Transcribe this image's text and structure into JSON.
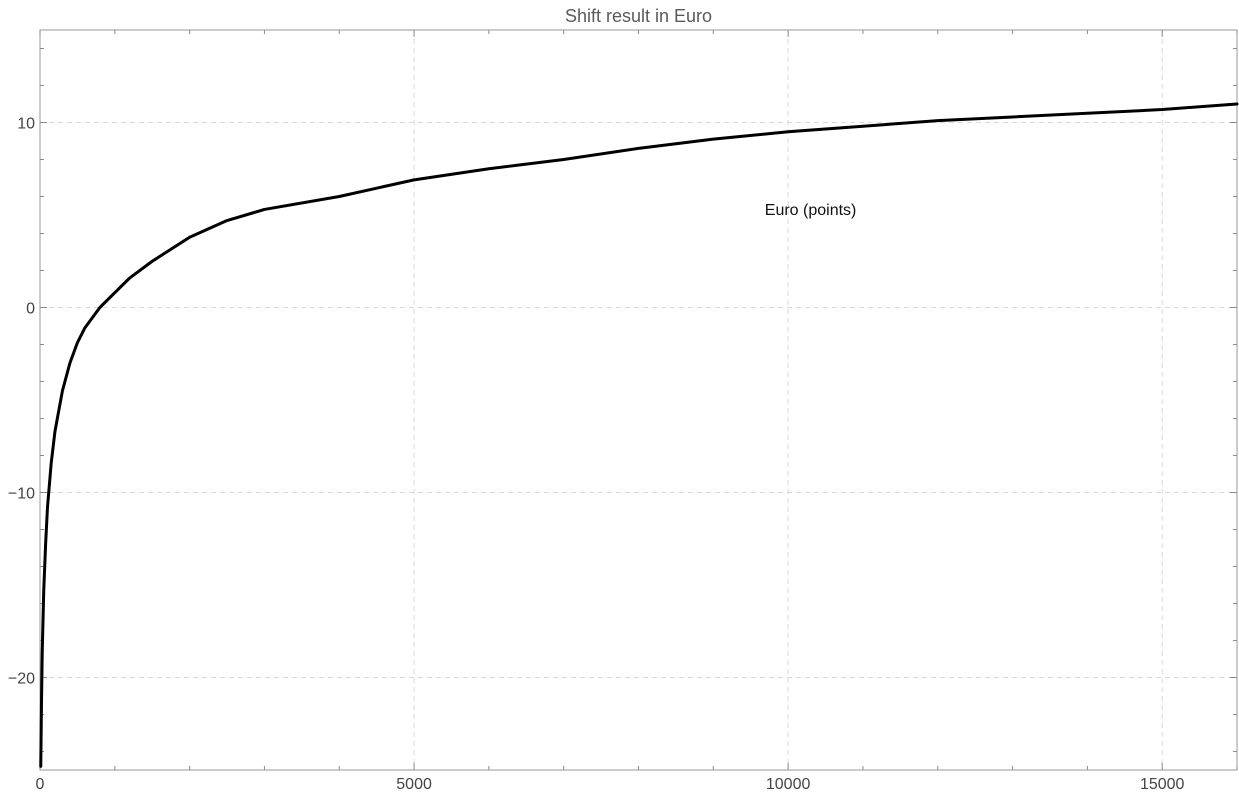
{
  "chart_data": {
    "type": "line",
    "title": "Shift result in Euro",
    "xlabel": "",
    "ylabel": "",
    "xlim": [
      0,
      16000
    ],
    "ylim": [
      -25,
      15
    ],
    "grid": true,
    "legend": "none",
    "x_ticks": [
      0,
      5000,
      10000,
      15000
    ],
    "x_tick_labels": [
      "0",
      "5000",
      "10000",
      "15000"
    ],
    "y_ticks": [
      -20,
      -10,
      0,
      10
    ],
    "y_tick_labels": [
      "−20",
      "−10",
      "0",
      "10"
    ],
    "annotations": [
      {
        "text": "Euro (points)",
        "x": 10300,
        "y": 5
      }
    ],
    "series": [
      {
        "color": "#000000",
        "x": [
          10,
          20,
          30,
          50,
          75,
          100,
          150,
          200,
          300,
          400,
          500,
          600,
          800,
          1000,
          1200,
          1500,
          2000,
          2500,
          3000,
          4000,
          5000,
          6000,
          7000,
          8000,
          9000,
          10000,
          11000,
          12000,
          13000,
          14000,
          15000,
          16000
        ],
        "y": [
          -24.8,
          -21.3,
          -18.6,
          -15.3,
          -12.8,
          -10.8,
          -8.4,
          -6.7,
          -4.5,
          -3.0,
          -1.9,
          -1.1,
          0.0,
          0.8,
          1.6,
          2.5,
          3.8,
          4.7,
          5.3,
          6.0,
          6.9,
          7.5,
          8.0,
          8.6,
          9.1,
          9.5,
          9.8,
          10.1,
          10.3,
          10.5,
          10.7,
          11.0
        ]
      }
    ]
  }
}
